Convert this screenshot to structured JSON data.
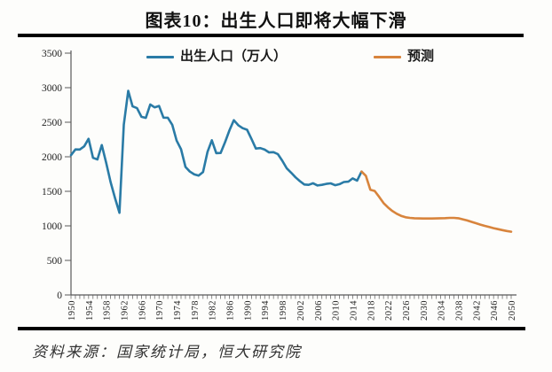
{
  "header": {
    "title": "图表10：出生人口即将大幅下滑"
  },
  "footer": {
    "source": "资料来源：国家统计局，恒大研究院"
  },
  "colors": {
    "historical_line": "#2a7ba6",
    "forecast_line": "#d8843c",
    "axis": "#595959",
    "tick_text": "#222222",
    "rule": "#000000",
    "background": "#fdfdfb"
  },
  "chart_data": {
    "type": "line",
    "title": "图表10：出生人口即将大幅下滑",
    "xlabel": "",
    "ylabel": "",
    "grid": false,
    "legend_position": "top",
    "x_range": [
      1950,
      2050
    ],
    "ylim": [
      0,
      3500
    ],
    "y_ticks": [
      0,
      500,
      1000,
      1500,
      2000,
      2500,
      3000,
      3500
    ],
    "x_tick_years": [
      1950,
      1954,
      1958,
      1962,
      1966,
      1970,
      1974,
      1978,
      1982,
      1986,
      1990,
      1994,
      1998,
      2002,
      2006,
      2010,
      2014,
      2018,
      2022,
      2026,
      2030,
      2034,
      2038,
      2042,
      2046,
      2050
    ],
    "x_minor_tick_every": 1,
    "series": [
      {
        "name": "出生人口（万人）",
        "color": "#2a7ba6",
        "start_year": 1950,
        "values": [
          2023,
          2107,
          2105,
          2151,
          2260,
          1984,
          1961,
          2169,
          1909,
          1635,
          1402,
          1188,
          2464,
          2954,
          2729,
          2704,
          2578,
          2563,
          2757,
          2715,
          2736,
          2567,
          2566,
          2463,
          2235,
          2109,
          1853,
          1786,
          1745,
          1727,
          1779,
          2069,
          2238,
          2052,
          2055,
          2211,
          2384,
          2529,
          2457,
          2414,
          2391,
          2258,
          2119,
          2126,
          2104,
          2063,
          2067,
          2038,
          1942,
          1834,
          1771,
          1702,
          1647,
          1599,
          1593,
          1617,
          1585,
          1594,
          1608,
          1615,
          1588,
          1604,
          1635,
          1640,
          1687,
          1655,
          1786
        ]
      },
      {
        "name": "预测",
        "color": "#d8843c",
        "start_year": 2016,
        "values": [
          1786,
          1723,
          1523,
          1505,
          1420,
          1330,
          1268,
          1215,
          1175,
          1145,
          1125,
          1115,
          1110,
          1108,
          1107,
          1107,
          1107,
          1108,
          1110,
          1112,
          1115,
          1115,
          1110,
          1095,
          1078,
          1058,
          1038,
          1018,
          1000,
          983,
          967,
          952,
          938,
          926,
          915
        ]
      }
    ]
  }
}
